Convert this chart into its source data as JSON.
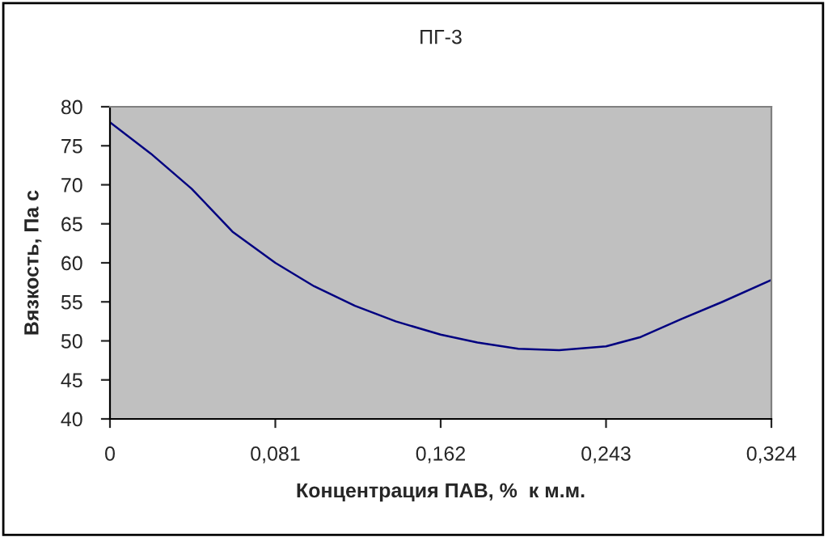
{
  "chart_data": {
    "type": "line",
    "title": "ПГ-3",
    "xlabel": "Концентрация ПАВ, %  к м.м.",
    "ylabel": "Вязкость, Па с",
    "x": [
      0,
      0.02,
      0.04,
      0.06,
      0.081,
      0.1,
      0.12,
      0.14,
      0.162,
      0.18,
      0.2,
      0.22,
      0.243,
      0.26,
      0.28,
      0.3,
      0.324
    ],
    "series": [
      {
        "color": "#000080",
        "values": [
          78,
          74,
          69.5,
          64,
          60,
          57,
          54.5,
          52.5,
          50.8,
          49.8,
          49,
          48.8,
          49.3,
          50.5,
          52.8,
          55,
          57.8
        ]
      }
    ],
    "xlim": [
      0,
      0.324
    ],
    "xticks": [
      0,
      {
        "value": 0.081,
        "label": "0,081"
      },
      {
        "value": 0.162,
        "label": "0,162"
      },
      {
        "value": 0.243,
        "label": "0,243"
      },
      {
        "value": 0.324,
        "label": "0,324"
      }
    ],
    "ylim": [
      40,
      80
    ],
    "yticks": [
      40,
      45,
      50,
      55,
      60,
      65,
      70,
      75,
      80
    ],
    "grid": false,
    "legend": false,
    "marker": "none",
    "line_style": "solid"
  }
}
